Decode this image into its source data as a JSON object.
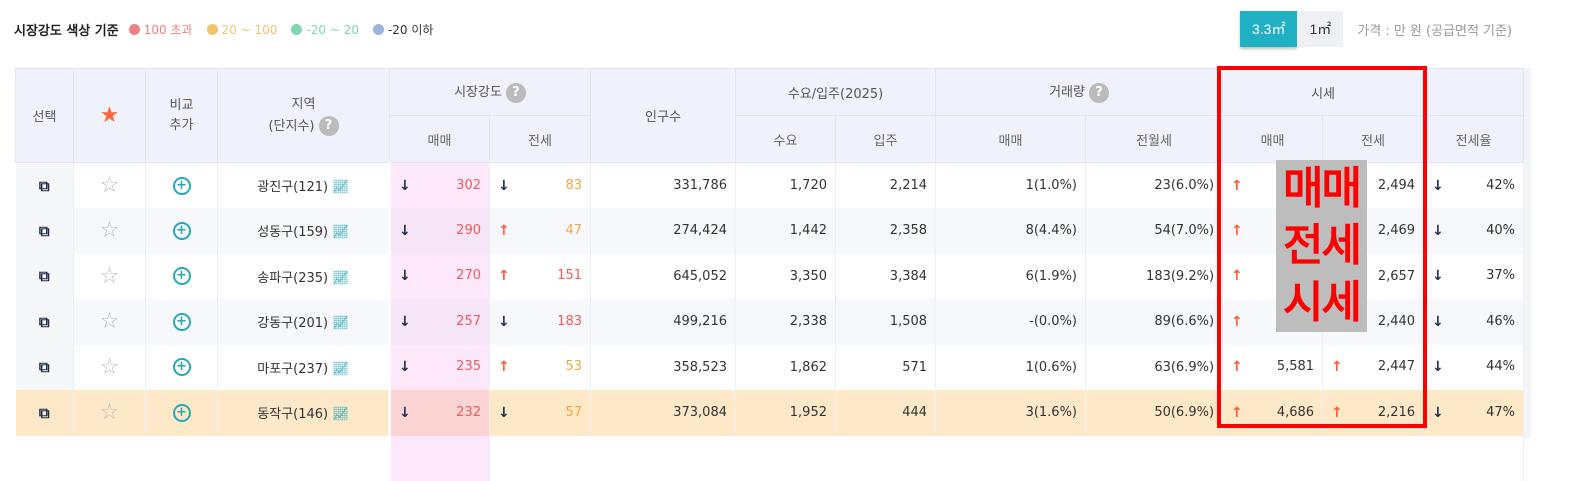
{
  "legend": {
    "title": "시장강도 색상 기준",
    "items": [
      {
        "label": "100 초과",
        "color": "#f08080"
      },
      {
        "label": "20 ~ 100",
        "color": "#f2c36b"
      },
      {
        "label": "-20 ~ 20",
        "color": "#7fd6b1"
      },
      {
        "label": "-20 이하",
        "color": "#9ab4dc"
      }
    ]
  },
  "unit": {
    "options": [
      "3.3㎡",
      "1㎡"
    ],
    "selected": "3.3㎡",
    "note": "가격 : 만 원 (공급면적 기준)"
  },
  "header": {
    "select": "선택",
    "compare": "비교\n추가",
    "region": "지역",
    "region_sub": "(단지수)",
    "strength": "시장강도",
    "population": "인구수",
    "supply": "수요/입주(2025)",
    "volume": "거래량",
    "price": "시세",
    "ratio": "전세율",
    "sale": "매매",
    "jeonse": "전세",
    "demand": "수요",
    "move_in": "입주",
    "rent": "전월세"
  },
  "overlay": [
    "매매",
    "전세",
    "시세"
  ],
  "rows": [
    {
      "region": "광진구(121)",
      "s_dir": "down",
      "s_val": "302",
      "j_dir": "down",
      "j_val": "83",
      "j_color": "org",
      "pop": "331,786",
      "demand": "1,720",
      "movein": "2,214",
      "v_sale": "1(1.0%)",
      "v_rent": "23(6.0%)",
      "p_dir": "up",
      "p_sale": "",
      "pj_dir": "",
      "p_jeonse": "2,494",
      "r_dir": "down",
      "ratio": "42%"
    },
    {
      "region": "성동구(159)",
      "s_dir": "down",
      "s_val": "290",
      "j_dir": "up",
      "j_val": "47",
      "j_color": "org",
      "pop": "274,424",
      "demand": "1,442",
      "movein": "2,358",
      "v_sale": "8(4.4%)",
      "v_rent": "54(7.0%)",
      "p_dir": "up",
      "p_sale": "",
      "pj_dir": "",
      "p_jeonse": "2,469",
      "r_dir": "down",
      "ratio": "40%"
    },
    {
      "region": "송파구(235)",
      "s_dir": "down",
      "s_val": "270",
      "j_dir": "up",
      "j_val": "151",
      "j_color": "red",
      "pop": "645,052",
      "demand": "3,350",
      "movein": "3,384",
      "v_sale": "6(1.9%)",
      "v_rent": "183(9.2%)",
      "p_dir": "up",
      "p_sale": "",
      "pj_dir": "",
      "p_jeonse": "2,657",
      "r_dir": "down",
      "ratio": "37%"
    },
    {
      "region": "강동구(201)",
      "s_dir": "down",
      "s_val": "257",
      "j_dir": "down",
      "j_val": "183",
      "j_color": "red",
      "pop": "499,216",
      "demand": "2,338",
      "movein": "1,508",
      "v_sale": "-(0.0%)",
      "v_rent": "89(6.6%)",
      "p_dir": "up",
      "p_sale": "",
      "pj_dir": "",
      "p_jeonse": "2,440",
      "r_dir": "down",
      "ratio": "46%"
    },
    {
      "region": "마포구(237)",
      "s_dir": "down",
      "s_val": "235",
      "j_dir": "up",
      "j_val": "53",
      "j_color": "org",
      "pop": "358,523",
      "demand": "1,862",
      "movein": "571",
      "v_sale": "1(0.6%)",
      "v_rent": "63(6.9%)",
      "p_dir": "up",
      "p_sale": "5,581",
      "pj_dir": "up",
      "p_jeonse": "2,447",
      "r_dir": "down",
      "ratio": "44%"
    },
    {
      "region": "동작구(146)",
      "s_dir": "down",
      "s_val": "232",
      "j_dir": "down",
      "j_val": "57",
      "j_color": "org",
      "pop": "373,084",
      "demand": "1,952",
      "movein": "444",
      "v_sale": "3(1.6%)",
      "v_rent": "50(6.9%)",
      "p_dir": "up",
      "p_sale": "4,686",
      "pj_dir": "up",
      "p_jeonse": "2,216",
      "r_dir": "down",
      "ratio": "47%",
      "highlight": true
    }
  ]
}
